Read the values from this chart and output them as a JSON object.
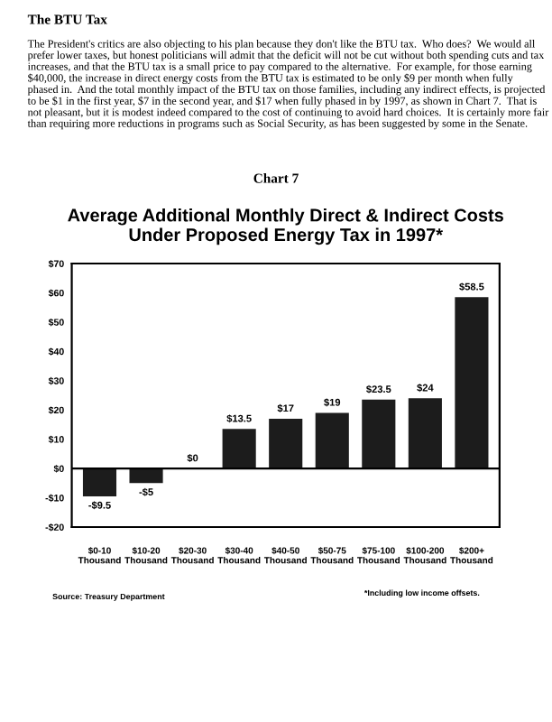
{
  "chart_data": {
    "type": "bar",
    "title": "Average Additional Monthly Direct & Indirect Costs\nUnder Proposed Energy Tax in 1997*",
    "categories": [
      "$0-10\nThousand",
      "$10-20\nThousand",
      "$20-30\nThousand",
      "$30-40\nThousand",
      "$40-50\nThousand",
      "$50-75\nThousand",
      "$75-100\nThousand",
      "$100-200\nThousand",
      "$200+\nThousand"
    ],
    "values": [
      -9.5,
      -5,
      0,
      13.5,
      17,
      19,
      23.5,
      24,
      58.5
    ],
    "value_labels": [
      "-$9.5",
      "-$5",
      "$0",
      "$13.5",
      "$17",
      "$19",
      "$23.5",
      "$24",
      "$58.5"
    ],
    "color": "#1c1c1c",
    "ylim": [
      -20,
      70
    ],
    "yticks": [
      {
        "value": -20,
        "label": "-$20"
      },
      {
        "value": -10,
        "label": "-$10"
      },
      {
        "value": 0,
        "label": "$0"
      },
      {
        "value": 10,
        "label": "$10"
      },
      {
        "value": 20,
        "label": "$20"
      },
      {
        "value": 30,
        "label": "$30"
      },
      {
        "value": 40,
        "label": "$40"
      },
      {
        "value": 50,
        "label": "$50"
      },
      {
        "value": 60,
        "label": "$60"
      },
      {
        "value": 70,
        "label": "$70"
      }
    ],
    "ref_lines": [
      {
        "axis": "y",
        "value": 0,
        "color": "#000000"
      }
    ],
    "grid": false,
    "legend": false,
    "annotations": [
      "The BTU Tax",
      "The President's critics are also objecting to his plan because they don't like the BTU tax.  Who does?  We would all prefer lower taxes, but honest politicians will admit that the deficit will not be cut without both spending cuts and tax increases, and that the BTU tax is a small price to pay compared to the alternative.  For example, for those earning $40,000, the increase in direct energy costs from the BTU tax is estimated to be only $9 per month when fully phased in.  And the total monthly impact of the BTU tax on those families, including any indirect effects, is projected to be $1 in the first year, $7 in the second year, and $17 when fully phased in by 1997, as shown in Chart 7.  That is not pleasant, but it is modest indeed compared to the cost of continuing to avoid hard choices.  It is certainly more fair than requiring more reductions in programs such as Social Security, as has been suggested by some in the Senate.",
      "Chart 7",
      "Source: Treasury Department",
      "*Including low income offsets."
    ]
  }
}
